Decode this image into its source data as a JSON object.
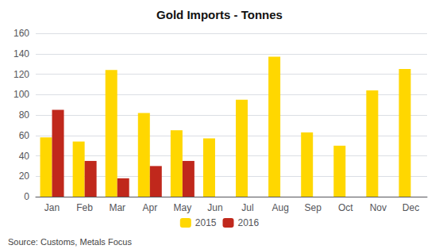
{
  "chart_data": {
    "type": "bar",
    "title": "Gold Imports - Tonnes",
    "categories": [
      "Jan",
      "Feb",
      "Mar",
      "Apr",
      "May",
      "Jun",
      "Jul",
      "Aug",
      "Sep",
      "Oct",
      "Nov",
      "Dec"
    ],
    "series": [
      {
        "name": "2015",
        "color": "#FFD700",
        "values": [
          58,
          54,
          124,
          82,
          65,
          57,
          95,
          137,
          63,
          50,
          104,
          125
        ]
      },
      {
        "name": "2016",
        "color": "#C0281C",
        "values": [
          85,
          35,
          18,
          30,
          35,
          null,
          null,
          null,
          null,
          null,
          null,
          null
        ]
      }
    ],
    "ylim": [
      0,
      160
    ],
    "yticks": [
      0,
      20,
      40,
      60,
      80,
      100,
      120,
      140,
      160
    ],
    "grid": true,
    "legend": "bottom",
    "annotations": [
      "Source: Customs, Metals Focus"
    ]
  }
}
